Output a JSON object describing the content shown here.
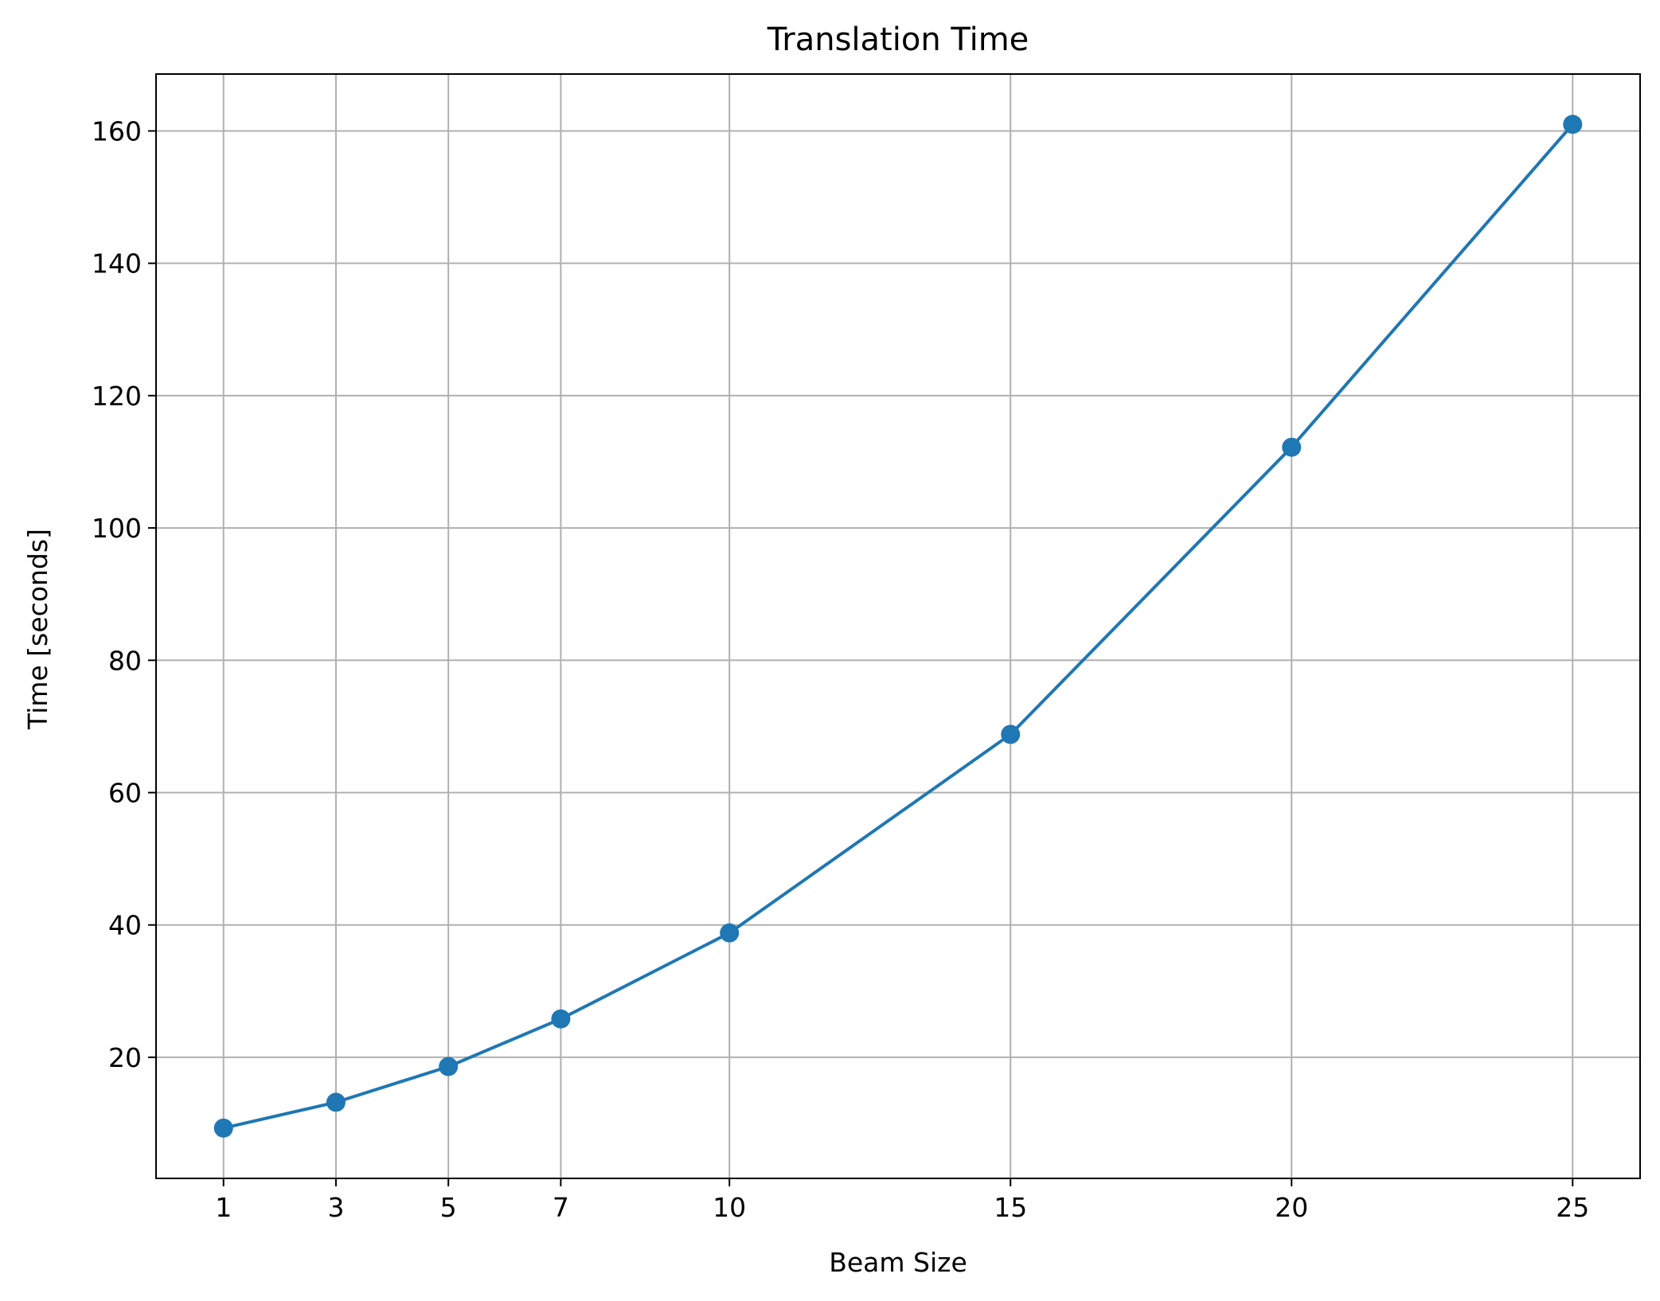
{
  "chart_data": {
    "type": "line",
    "title": "Translation Time",
    "xlabel": "Beam Size",
    "ylabel": "Time [seconds]",
    "x": [
      1,
      3,
      5,
      7,
      10,
      15,
      20,
      25
    ],
    "series": [
      {
        "name": "",
        "values": [
          9.3,
          13.2,
          18.6,
          25.8,
          38.8,
          68.8,
          112.2,
          161.0
        ],
        "color": "#1f77b4"
      }
    ],
    "xticks": [
      1,
      3,
      5,
      7,
      10,
      15,
      20,
      25
    ],
    "yticks": [
      20,
      40,
      60,
      80,
      100,
      120,
      140,
      160
    ],
    "xlim": [
      -0.2,
      26.2
    ],
    "ylim": [
      1.7,
      168.6
    ],
    "grid": true,
    "marker": "circle"
  }
}
